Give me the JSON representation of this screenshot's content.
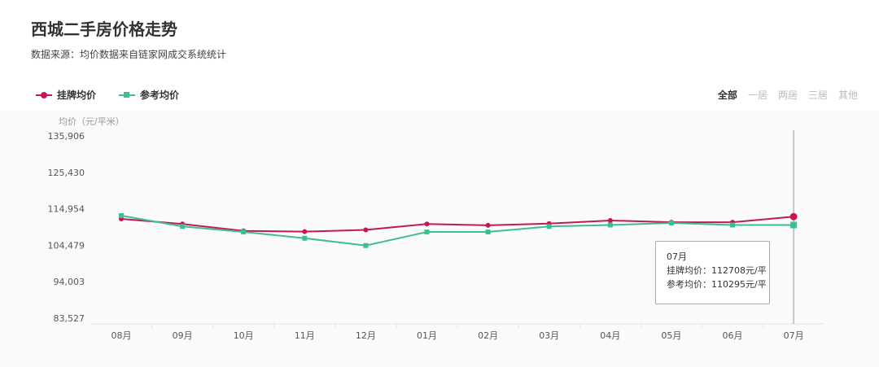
{
  "title": "西城二手房价格走势",
  "subtitle": "数据来源：均价数据来自链家网成交系统统计",
  "filters": [
    "全部",
    "一居",
    "两居",
    "三居",
    "其他"
  ],
  "active_filter": "全部",
  "tooltip": {
    "month": "07月",
    "line1": "挂牌均价：112708元/平",
    "line2": "参考均价：110295元/平"
  },
  "chart_data": {
    "type": "line",
    "ylabel": "均价（元/平米）",
    "xlabel": "",
    "categories": [
      "08月",
      "09月",
      "10月",
      "11月",
      "12月",
      "01月",
      "02月",
      "03月",
      "04月",
      "05月",
      "06月",
      "07月"
    ],
    "y_ticks": [
      "135,906",
      "125,430",
      "114,954",
      "104,479",
      "94,003",
      "83,527"
    ],
    "ylim": [
      83527,
      135906
    ],
    "grid": false,
    "legend_position": "top-left",
    "series": [
      {
        "name": "挂牌均价",
        "color": "#c2185b",
        "marker": "circle",
        "values": [
          112060,
          110600,
          108600,
          108400,
          108900,
          110600,
          110200,
          110700,
          111600,
          111100,
          111100,
          112708
        ]
      },
      {
        "name": "参考均价",
        "color": "#3cbf8f",
        "marker": "square",
        "values": [
          113000,
          109900,
          108300,
          106500,
          104400,
          108300,
          108300,
          109900,
          110300,
          110900,
          110300,
          110295
        ]
      }
    ]
  }
}
